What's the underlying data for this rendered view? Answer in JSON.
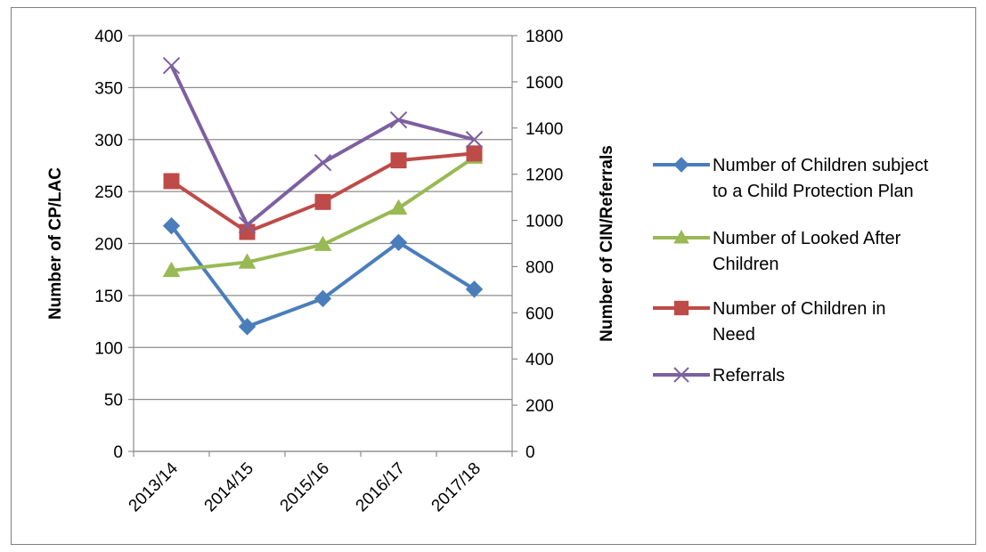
{
  "chart_data": {
    "type": "line",
    "categories": [
      "2013/14",
      "2014/15",
      "2015/16",
      "2016/17",
      "2017/18"
    ],
    "y_left": {
      "label": "Number of CP/LAC",
      "range": [
        0,
        400
      ],
      "ticks": [
        "0",
        "50",
        "100",
        "150",
        "200",
        "250",
        "300",
        "350",
        "400"
      ]
    },
    "y_right": {
      "label": "Number of CIN/Referrals",
      "range": [
        0,
        1800
      ],
      "ticks": [
        "0",
        "200",
        "400",
        "600",
        "800",
        "1000",
        "1200",
        "1400",
        "1600",
        "1800"
      ]
    },
    "grid": "horizontal",
    "legend_position": "right",
    "series": [
      {
        "name_lines": [
          "Number of Children subject",
          "to a Child Protection Plan"
        ],
        "axis": "left",
        "values": [
          217,
          120,
          147,
          201,
          156
        ],
        "color": "#4a7ebb",
        "marker": "diamond"
      },
      {
        "name_lines": [
          "Number of Looked After",
          "Children"
        ],
        "axis": "left",
        "values": [
          174,
          182,
          199,
          234,
          283
        ],
        "color": "#98b954",
        "marker": "triangle"
      },
      {
        "name_lines": [
          "Number of Children in",
          "Need"
        ],
        "axis": "right",
        "values": [
          1170,
          950,
          1080,
          1260,
          1290
        ],
        "color": "#be4b48",
        "marker": "square"
      },
      {
        "name_lines": [
          "Referrals"
        ],
        "axis": "right",
        "values": [
          1670,
          980,
          1250,
          1435,
          1350
        ],
        "color": "#7d60a0",
        "marker": "x"
      }
    ]
  }
}
